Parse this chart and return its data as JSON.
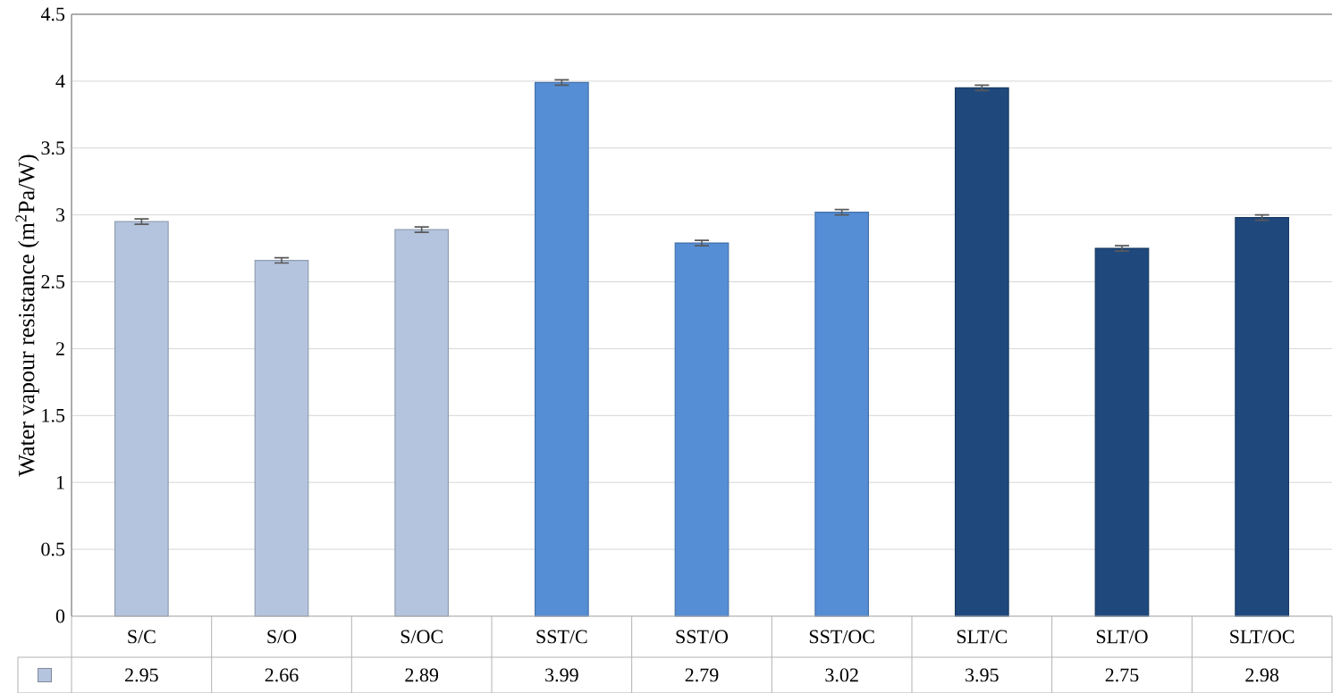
{
  "chart_data": {
    "type": "bar",
    "ylabel": "Water vapour resistance (m$^{2}$Pa/W)",
    "categories": [
      "S/C",
      "S/O",
      "S/OC",
      "SST/C",
      "SST/O",
      "SST/OC",
      "SLT/C",
      "SLT/O",
      "SLT/OC"
    ],
    "values": [
      2.95,
      2.66,
      2.89,
      3.99,
      2.79,
      3.02,
      3.95,
      2.75,
      2.98
    ],
    "errors": [
      0.02,
      0.02,
      0.02,
      0.02,
      0.02,
      0.02,
      0.02,
      0.02,
      0.02
    ],
    "colors": [
      "#b4c4de",
      "#b4c4de",
      "#b4c4de",
      "#558ed5",
      "#558ed5",
      "#558ed5",
      "#1f497d",
      "#1f497d",
      "#1f497d"
    ],
    "ylim": [
      0,
      4.5
    ],
    "yticks": [
      0,
      0.5,
      1,
      1.5,
      2,
      2.5,
      3,
      3.5,
      4,
      4.5
    ],
    "grid": "y",
    "data_labels": true
  }
}
